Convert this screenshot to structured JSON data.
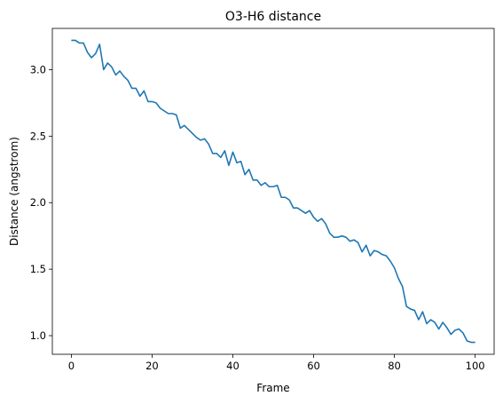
{
  "chart_data": {
    "type": "line",
    "title": "O3-H6 distance",
    "xlabel": "Frame",
    "ylabel": "Distance (angstrom)",
    "xlim": [
      -4.7,
      104.7
    ],
    "ylim": [
      0.86,
      3.31
    ],
    "xticks": [
      0,
      20,
      40,
      60,
      80,
      100
    ],
    "yticks": [
      1.0,
      1.5,
      2.0,
      2.5,
      3.0
    ],
    "xtick_labels": [
      "0",
      "20",
      "40",
      "60",
      "80",
      "100"
    ],
    "ytick_labels": [
      "1.0",
      "1.5",
      "2.0",
      "2.5",
      "3.0"
    ],
    "grid": false,
    "series": [
      {
        "color": "#1f77b4",
        "x": [
          0,
          1,
          2,
          3,
          4,
          5,
          6,
          7,
          8,
          9,
          10,
          11,
          12,
          13,
          14,
          15,
          16,
          17,
          18,
          19,
          20,
          21,
          22,
          23,
          24,
          25,
          26,
          27,
          28,
          29,
          30,
          31,
          32,
          33,
          34,
          35,
          36,
          37,
          38,
          39,
          40,
          41,
          42,
          43,
          44,
          45,
          46,
          47,
          48,
          49,
          50,
          51,
          52,
          53,
          54,
          55,
          56,
          57,
          58,
          59,
          60,
          61,
          62,
          63,
          64,
          65,
          66,
          67,
          68,
          69,
          70,
          71,
          72,
          73,
          74,
          75,
          76,
          77,
          78,
          79,
          80,
          81,
          82,
          83,
          84,
          85,
          86,
          87,
          88,
          89,
          90,
          91,
          92,
          93,
          94,
          95,
          96,
          97,
          98,
          99,
          100
        ],
        "y": [
          3.22,
          3.22,
          3.2,
          3.2,
          3.13,
          3.09,
          3.12,
          3.19,
          3.0,
          3.05,
          3.02,
          2.96,
          2.99,
          2.95,
          2.92,
          2.86,
          2.86,
          2.8,
          2.84,
          2.76,
          2.76,
          2.75,
          2.71,
          2.69,
          2.67,
          2.67,
          2.66,
          2.56,
          2.58,
          2.55,
          2.52,
          2.49,
          2.47,
          2.48,
          2.44,
          2.37,
          2.37,
          2.34,
          2.39,
          2.28,
          2.38,
          2.3,
          2.31,
          2.21,
          2.25,
          2.17,
          2.17,
          2.13,
          2.15,
          2.12,
          2.12,
          2.13,
          2.04,
          2.04,
          2.02,
          1.96,
          1.96,
          1.94,
          1.92,
          1.94,
          1.89,
          1.86,
          1.88,
          1.84,
          1.77,
          1.74,
          1.74,
          1.75,
          1.74,
          1.71,
          1.72,
          1.7,
          1.63,
          1.68,
          1.6,
          1.64,
          1.63,
          1.61,
          1.6,
          1.56,
          1.51,
          1.43,
          1.37,
          1.22,
          1.2,
          1.19,
          1.12,
          1.18,
          1.09,
          1.12,
          1.1,
          1.05,
          1.1,
          1.06,
          1.01,
          1.04,
          1.05,
          1.02,
          0.96,
          0.95,
          0.95
        ]
      }
    ]
  }
}
